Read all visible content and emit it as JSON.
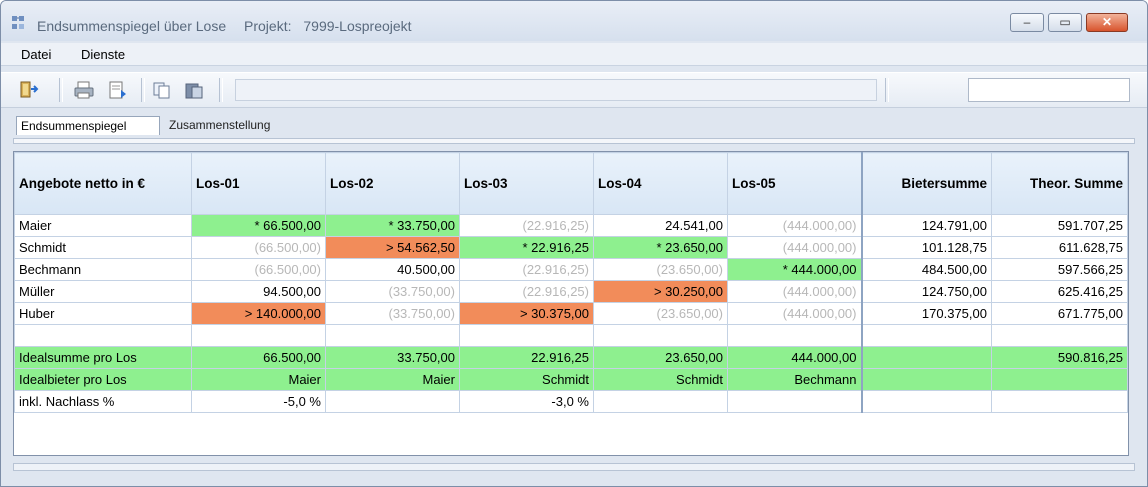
{
  "window": {
    "title": "Endsummenspiegel über Lose",
    "project_label": "Projekt:",
    "project_value": "7999-Lospreojekt"
  },
  "menu": {
    "items": [
      "Datei",
      "Dienste"
    ]
  },
  "tabs": [
    "Endsummenspiegel",
    "Zusammenstellung"
  ],
  "grid": {
    "columns": [
      "Angebote netto in €",
      "Los-01",
      "Los-02",
      "Los-03",
      "Los-04",
      "Los-05",
      "Bietersumme",
      "Theor. Summe"
    ],
    "rows": [
      {
        "name": "Maier",
        "cells": [
          "* 66.500,00",
          "* 33.750,00",
          "(22.916,25)",
          "24.541,00",
          "(444.000,00)"
        ],
        "bietersumme": "124.791,00",
        "theor": "591.707,25"
      },
      {
        "name": "Schmidt",
        "cells": [
          "(66.500,00)",
          "> 54.562,50",
          "* 22.916,25",
          "* 23.650,00",
          "(444.000,00)"
        ],
        "bietersumme": "101.128,75",
        "theor": "611.628,75"
      },
      {
        "name": "Bechmann",
        "cells": [
          "(66.500,00)",
          "40.500,00",
          "(22.916,25)",
          "(23.650,00)",
          "* 444.000,00"
        ],
        "bietersumme": "484.500,00",
        "theor": "597.566,25"
      },
      {
        "name": "Müller",
        "cells": [
          "94.500,00",
          "(33.750,00)",
          "(22.916,25)",
          "> 30.250,00",
          "(444.000,00)"
        ],
        "bietersumme": "124.750,00",
        "theor": "625.416,25"
      },
      {
        "name": "Huber",
        "cells": [
          "> 140.000,00",
          "(33.750,00)",
          "> 30.375,00",
          "(23.650,00)",
          "(444.000,00)"
        ],
        "bietersumme": "170.375,00",
        "theor": "671.775,00"
      }
    ],
    "summary": {
      "ideal_sum": {
        "label": "Idealsumme pro Los",
        "cells": [
          "66.500,00",
          "33.750,00",
          "22.916,25",
          "23.650,00",
          "444.000,00"
        ],
        "bietersumme": "",
        "theor": "590.816,25"
      },
      "ideal_bidder": {
        "label": "Idealbieter pro Los",
        "cells": [
          "Maier",
          "Maier",
          "Schmidt",
          "Schmidt",
          "Bechmann"
        ]
      },
      "discount": {
        "label": "inkl. Nachlass %",
        "cells": [
          "-5,0 %",
          "",
          "-3,0 %",
          "",
          ""
        ]
      }
    }
  },
  "colors": {
    "best": "#8ef08f",
    "worst": "#f28c5a",
    "muted_text": "#b7b7b7"
  }
}
